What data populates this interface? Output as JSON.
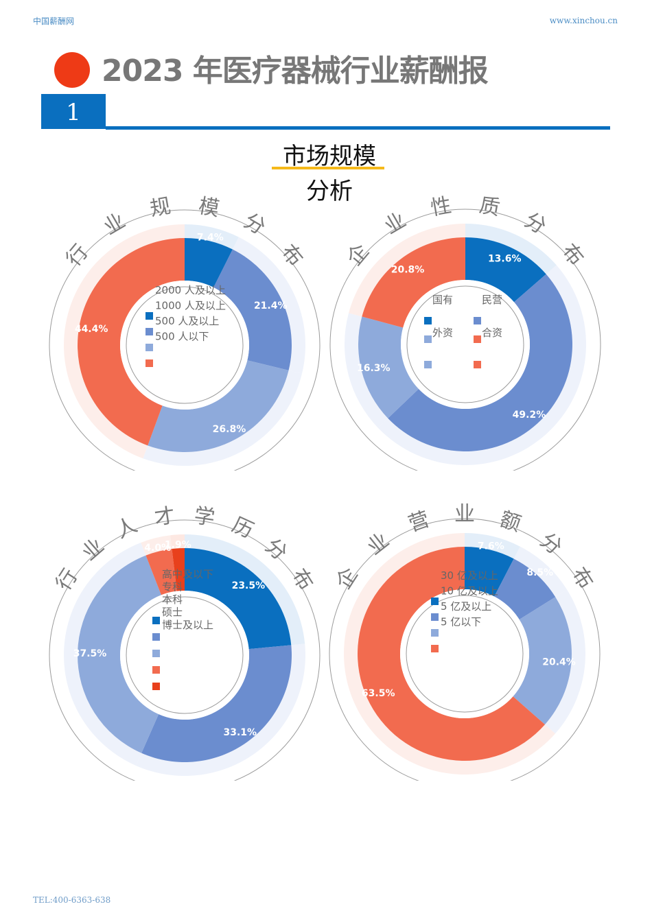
{
  "header": {
    "site_name": "中国薪酬网",
    "site_url": "www.xinchou.cn",
    "title": "2023 年医疗器械行业薪酬报",
    "section_number": "1",
    "subtitle_line1": "市场规模",
    "subtitle_line2": "分析"
  },
  "colors": {
    "brand_blue": "#0a6fbf",
    "accent_red": "#ee3a16",
    "accent_yellow": "#f5b91a",
    "series": [
      "#0a6fbf",
      "#6b8dcf",
      "#8eaadb",
      "#f26b4f",
      "#e8401c"
    ]
  },
  "chart_data": [
    {
      "type": "pie",
      "title": "行业规模分布",
      "categories": [
        "2000 人及以上",
        "1000 人及以上",
        "500 人及以上",
        "500 人以下"
      ],
      "values": [
        7.4,
        21.4,
        26.8,
        44.4
      ],
      "labels": [
        "7.4%",
        "21.4%",
        "26.8%",
        "44.4%"
      ],
      "legend_position": "center"
    },
    {
      "type": "pie",
      "title": "企业性质分布",
      "categories": [
        "国有",
        "民营",
        "外资",
        "合资"
      ],
      "values": [
        13.6,
        49.2,
        16.3,
        20.8
      ],
      "labels": [
        "13.6%",
        "49.2%",
        "16.3%",
        "20.8%"
      ],
      "legend_position": "center"
    },
    {
      "type": "pie",
      "title": "行业人才学历分布",
      "categories": [
        "高中及以下",
        "专科",
        "本科",
        "硕士",
        "博士及以上"
      ],
      "values": [
        23.5,
        33.1,
        37.5,
        4.0,
        1.9
      ],
      "labels": [
        "23.5%",
        "33.1%",
        "37.5%",
        "4.0%",
        "1.9%"
      ],
      "legend_position": "center"
    },
    {
      "type": "pie",
      "title": "企业营业额分布",
      "categories": [
        "30 亿及以上",
        "10 亿及以上",
        "5 亿及以上",
        "5 亿以下"
      ],
      "values": [
        7.6,
        8.5,
        20.4,
        63.5
      ],
      "labels": [
        "7.6%",
        "8.5%",
        "20.4%",
        "63.5%"
      ],
      "legend_position": "center"
    }
  ],
  "footer": {
    "tel": "TEL:400-6363-638"
  }
}
